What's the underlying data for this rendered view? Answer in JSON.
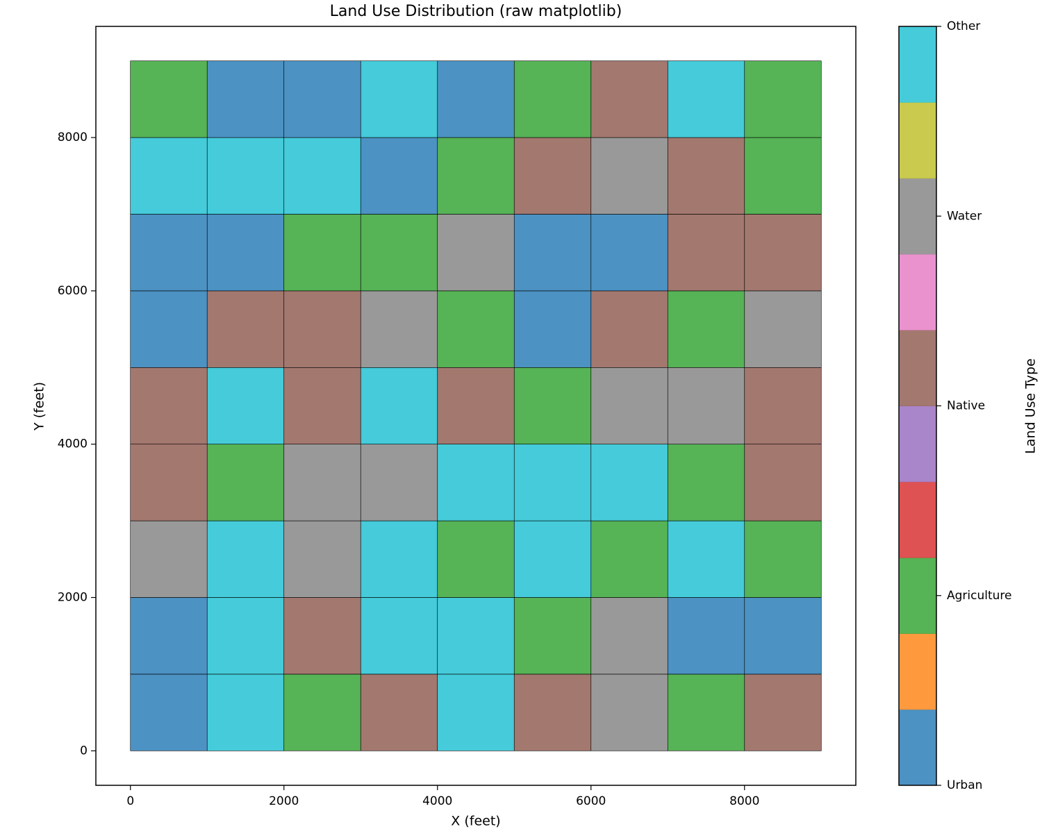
{
  "chart_data": {
    "type": "heatmap",
    "title": "Land Use Distribution (raw matplotlib)",
    "xlabel": "X (feet)",
    "ylabel": "Y (feet)",
    "colorbar_label": "Land Use Type",
    "x": [
      0,
      1000,
      2000,
      3000,
      4000,
      5000,
      6000,
      7000,
      8000,
      9000
    ],
    "y": [
      0,
      1000,
      2000,
      3000,
      4000,
      5000,
      6000,
      7000,
      8000,
      9000
    ],
    "z": [
      [
        0,
        4,
        1,
        2,
        4,
        2,
        3,
        1,
        2
      ],
      [
        0,
        4,
        2,
        4,
        4,
        1,
        3,
        0,
        0
      ],
      [
        3,
        4,
        3,
        4,
        1,
        4,
        1,
        4,
        1
      ],
      [
        2,
        1,
        3,
        3,
        4,
        4,
        4,
        1,
        2
      ],
      [
        2,
        4,
        2,
        4,
        2,
        1,
        3,
        3,
        2
      ],
      [
        0,
        2,
        2,
        3,
        1,
        0,
        2,
        1,
        3
      ],
      [
        0,
        0,
        1,
        1,
        3,
        0,
        0,
        2,
        2
      ],
      [
        4,
        4,
        4,
        0,
        1,
        2,
        3,
        2,
        1
      ],
      [
        1,
        0,
        0,
        4,
        0,
        1,
        2,
        4,
        1
      ]
    ],
    "cmap_colors": [
      "#1f77b4",
      "#ff7f0e",
      "#2ca02c",
      "#d62728",
      "#9467bd",
      "#8c564b",
      "#e377c2",
      "#7f7f7f",
      "#bcbd22",
      "#17becf"
    ],
    "alpha": 0.8,
    "clim": [
      0,
      4
    ],
    "colorbar_ticks": [
      {
        "value": 0,
        "label": "Urban"
      },
      {
        "value": 1,
        "label": "Agriculture"
      },
      {
        "value": 2,
        "label": "Native"
      },
      {
        "value": 3,
        "label": "Water"
      },
      {
        "value": 4,
        "label": "Other"
      }
    ],
    "xlim": [
      -450,
      9450
    ],
    "ylim": [
      -450,
      9450
    ],
    "xticks": [
      0,
      2000,
      4000,
      6000,
      8000
    ],
    "yticks": [
      0,
      2000,
      4000,
      6000,
      8000
    ]
  }
}
